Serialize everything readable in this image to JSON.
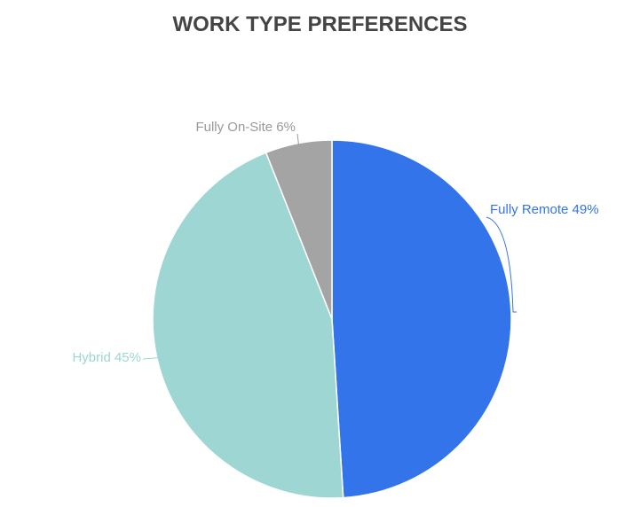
{
  "chart_data": {
    "type": "pie",
    "title": "WORK TYPE PREFERENCES",
    "slices": [
      {
        "label": "Fully Remote",
        "value": 49,
        "display": "Fully Remote 49%",
        "color": "#3474EA"
      },
      {
        "label": "Hybrid",
        "value": 45,
        "display": "Hybrid 45%",
        "color": "#9DD6D2"
      },
      {
        "label": "Fully On-Site",
        "value": 6,
        "display": "Fully On-Site 6%",
        "color": "#A4A4A4"
      }
    ],
    "start": "12 o'clock, clockwise",
    "label_colors": {
      "Fully Remote": "#3474EA",
      "Hybrid": "#9DD6D2",
      "Fully On-Site": "#999999"
    }
  }
}
